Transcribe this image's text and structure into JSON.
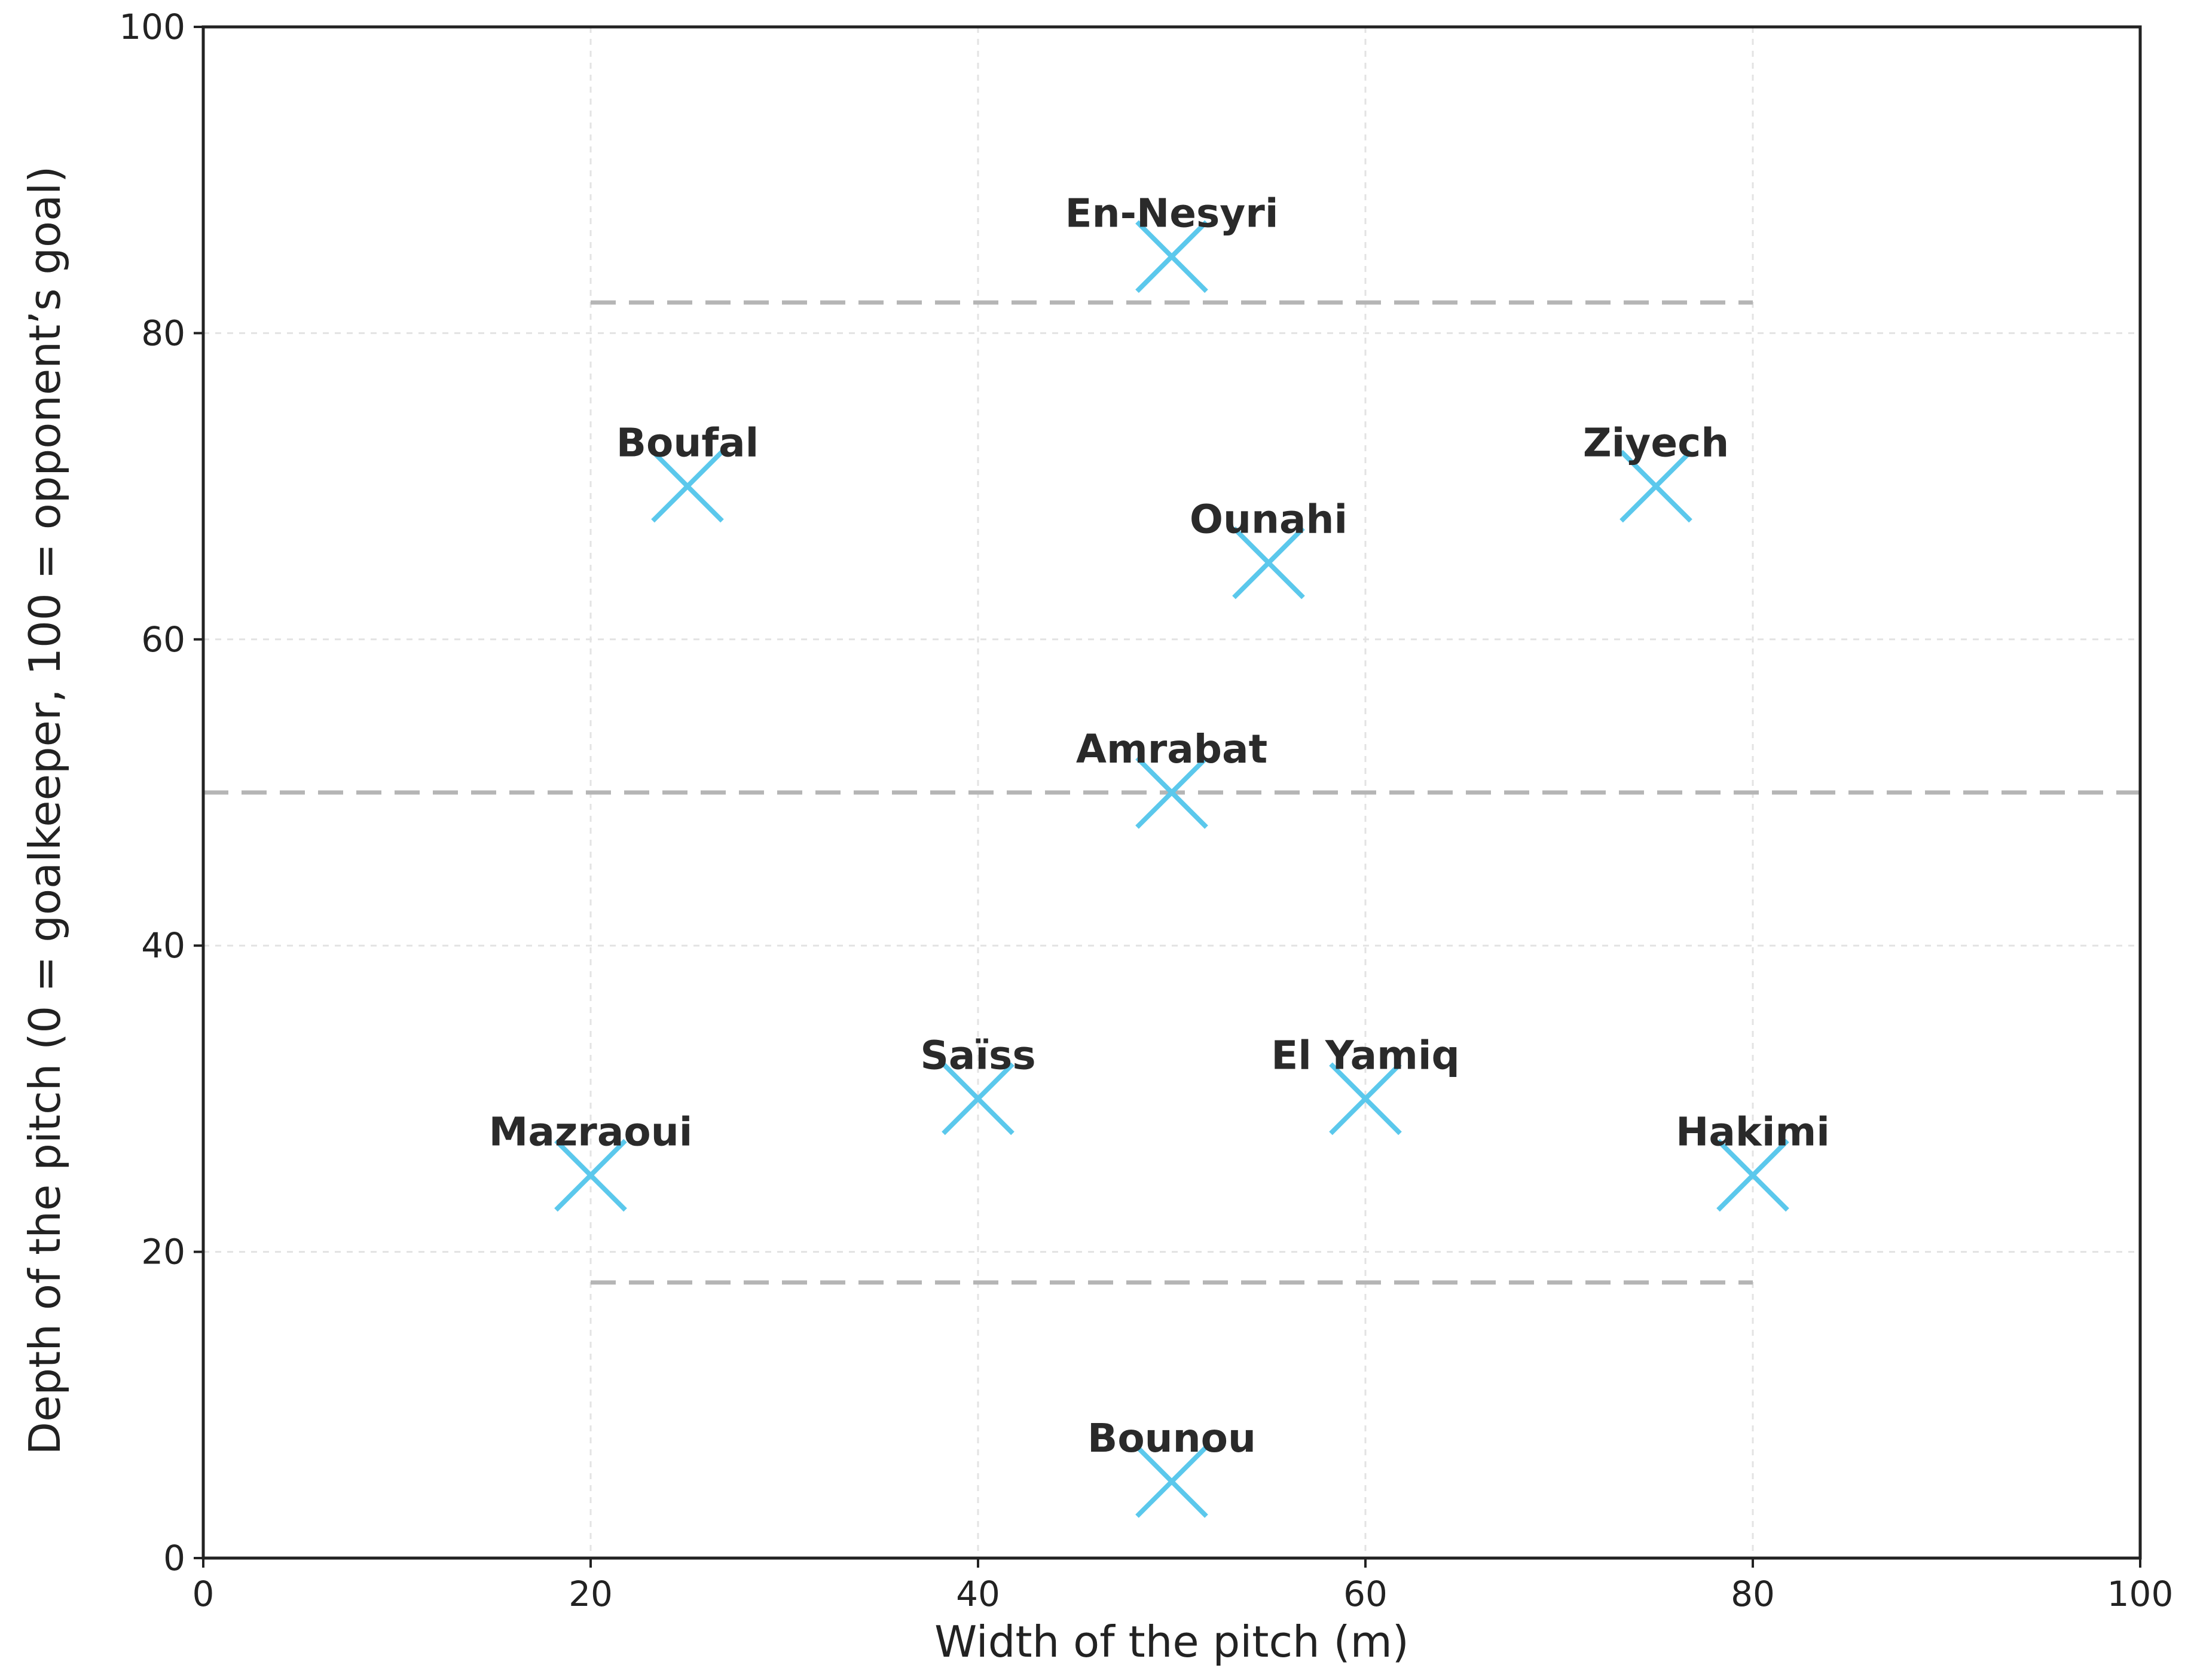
{
  "chart_data": {
    "type": "scatter",
    "title": "",
    "xlabel": "Width of the pitch (m)",
    "ylabel": "Depth of the pitch (0 = goalkeeper, 100 = opponent’s goal)",
    "xlim": [
      0,
      100
    ],
    "ylim": [
      0,
      100
    ],
    "xticks": [
      0,
      20,
      40,
      60,
      80,
      100
    ],
    "yticks": [
      0,
      20,
      40,
      60,
      80,
      100
    ],
    "grid": true,
    "marker": "x",
    "marker_color": "#5bc8ec",
    "reference_line_color": "#b5b5b5",
    "points": [
      {
        "label": "En-Nesyri",
        "x": 50,
        "y": 85
      },
      {
        "label": "Boufal",
        "x": 25,
        "y": 70
      },
      {
        "label": "Ziyech",
        "x": 75,
        "y": 70
      },
      {
        "label": "Ounahi",
        "x": 55,
        "y": 65
      },
      {
        "label": "Amrabat",
        "x": 50,
        "y": 50
      },
      {
        "label": "Saïss",
        "x": 40,
        "y": 30
      },
      {
        "label": "El Yamiq",
        "x": 60,
        "y": 30
      },
      {
        "label": "Mazraoui",
        "x": 20,
        "y": 25
      },
      {
        "label": "Hakimi",
        "x": 80,
        "y": 25
      },
      {
        "label": "Bounou",
        "x": 50,
        "y": 5
      }
    ],
    "reference_lines": [
      {
        "y": 82,
        "x_from": 20,
        "x_to": 80
      },
      {
        "y": 50,
        "x_from": 0,
        "x_to": 100
      },
      {
        "y": 18,
        "x_from": 20,
        "x_to": 80
      }
    ]
  }
}
